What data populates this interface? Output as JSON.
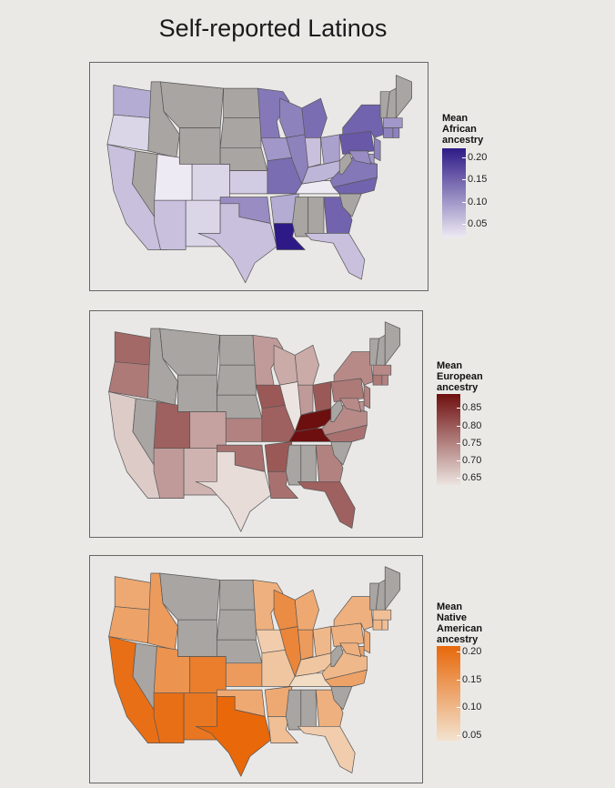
{
  "title": "Self-reported Latinos",
  "colors": {
    "background": "#ebe9e6",
    "missing_state": "#a8a5a2",
    "state_border": "#555555"
  },
  "maps": [
    {
      "id": "african",
      "legend_title": [
        "Mean",
        "African",
        "ancestry"
      ],
      "ticks": [
        "0.20",
        "0.15",
        "0.10",
        "0.05"
      ],
      "tick_values": [
        0.2,
        0.15,
        0.1,
        0.05
      ],
      "range": [
        0.02,
        0.22
      ],
      "color_low": "#eeeaf3",
      "color_high": "#2e1a87",
      "state_values": {
        "WA": 0.08,
        "OR": 0.04,
        "CA": 0.06,
        "NV": null,
        "ID": null,
        "MT": null,
        "WY": null,
        "UT": 0.02,
        "CO": 0.04,
        "AZ": 0.06,
        "NM": 0.04,
        "ND": null,
        "SD": null,
        "NE": null,
        "KS": 0.05,
        "OK": 0.11,
        "TX": 0.06,
        "MN": 0.13,
        "IA": 0.1,
        "MO": 0.14,
        "AR": 0.08,
        "LA": 0.22,
        "WI": 0.12,
        "IL": 0.12,
        "MI": 0.14,
        "IN": 0.06,
        "OH": 0.09,
        "KY": 0.07,
        "TN": 0.02,
        "MS": null,
        "AL": null,
        "GA": 0.15,
        "FL": 0.06,
        "SC": null,
        "NC": 0.15,
        "VA": 0.13,
        "WV": null,
        "PA": 0.16,
        "NY": 0.15,
        "NJ": 0.12,
        "DE": 0.1,
        "MD": 0.11,
        "CT": 0.12,
        "RI": 0.12,
        "MA": 0.1,
        "VT": null,
        "NH": null,
        "ME": null
      }
    },
    {
      "id": "european",
      "legend_title": [
        "Mean",
        "European",
        "ancestry"
      ],
      "ticks": [
        "0.85",
        "0.80",
        "0.75",
        "0.70",
        "0.65"
      ],
      "tick_values": [
        0.85,
        0.8,
        0.75,
        0.7,
        0.65
      ],
      "range": [
        0.63,
        0.89
      ],
      "color_low": "#ece4e0",
      "color_high": "#6e0f0f",
      "state_values": {
        "WA": 0.78,
        "OR": 0.76,
        "CA": 0.66,
        "NV": null,
        "ID": null,
        "MT": null,
        "WY": null,
        "UT": 0.79,
        "CO": 0.71,
        "AZ": 0.72,
        "NM": 0.69,
        "ND": null,
        "SD": null,
        "NE": null,
        "KS": 0.75,
        "OK": 0.77,
        "TX": 0.64,
        "MN": 0.72,
        "IA": 0.8,
        "MO": 0.79,
        "AR": 0.8,
        "LA": 0.77,
        "WI": 0.7,
        "IL": 0.63,
        "MI": 0.7,
        "IN": 0.72,
        "OH": 0.8,
        "KY": 0.89,
        "TN": 0.89,
        "MS": null,
        "AL": null,
        "GA": 0.75,
        "FL": 0.79,
        "SC": null,
        "NC": 0.77,
        "VA": 0.74,
        "WV": null,
        "PA": 0.76,
        "NY": 0.74,
        "NJ": 0.75,
        "DE": 0.73,
        "MD": 0.74,
        "CT": 0.76,
        "RI": 0.75,
        "MA": 0.74,
        "VT": null,
        "NH": null,
        "ME": null
      }
    },
    {
      "id": "native",
      "legend_title": [
        "Mean",
        "Native",
        "American",
        "ancestry"
      ],
      "ticks": [
        "0.20",
        "0.15",
        "0.10",
        "0.05"
      ],
      "tick_values": [
        0.2,
        0.15,
        0.1,
        0.05
      ],
      "range": [
        0.04,
        0.21
      ],
      "color_low": "#f3e3d0",
      "color_high": "#e8680a",
      "state_values": {
        "WA": 0.12,
        "OR": 0.13,
        "CA": 0.2,
        "NV": null,
        "ID": 0.14,
        "MT": null,
        "WY": null,
        "UT": 0.15,
        "CO": 0.18,
        "AZ": 0.2,
        "NM": 0.19,
        "ND": null,
        "SD": null,
        "NE": null,
        "KS": 0.14,
        "OK": 0.12,
        "TX": 0.21,
        "MN": 0.11,
        "IA": 0.07,
        "MO": 0.08,
        "AR": 0.12,
        "LA": 0.09,
        "WI": 0.16,
        "IL": 0.17,
        "MI": 0.12,
        "IN": 0.14,
        "OH": 0.1,
        "KY": 0.08,
        "TN": 0.05,
        "MS": null,
        "AL": null,
        "GA": 0.11,
        "FL": 0.07,
        "SC": null,
        "NC": 0.13,
        "VA": 0.1,
        "WV": null,
        "PA": 0.11,
        "NY": 0.11,
        "NJ": 0.12,
        "DE": 0.13,
        "MD": 0.11,
        "CT": 0.1,
        "RI": 0.09,
        "MA": 0.09,
        "VT": null,
        "NH": null,
        "ME": null
      }
    }
  ]
}
